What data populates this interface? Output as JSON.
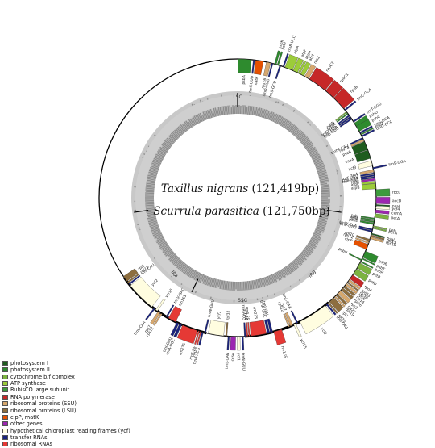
{
  "title": {
    "line1_species": "Taxillus nigrans",
    "line1_size": "(121,419bp)",
    "line2_species": "Scurrula parasitica",
    "line2_size": "(121,750bp)"
  },
  "regions": {
    "lsc": "LSC",
    "ssc": "SSC",
    "ira": "IRA",
    "irb": "IRB"
  },
  "legend": [
    {
      "label": "photosystem I",
      "color": "#1f5c1f"
    },
    {
      "label": "photosystem II",
      "color": "#2e8b2e"
    },
    {
      "label": "cytochrome b/f complex",
      "color": "#7cb341"
    },
    {
      "label": "ATP synthase",
      "color": "#9ccc3a"
    },
    {
      "label": "RubisCO large subunit",
      "color": "#3c9b3c"
    },
    {
      "label": "RNA polymerase",
      "color": "#c62828"
    },
    {
      "label": "ribosomal proteins (SSU)",
      "color": "#d7a86e"
    },
    {
      "label": "ribosomal proteins (LSU)",
      "color": "#8d6e3f"
    },
    {
      "label": "clpP, matK",
      "color": "#e65100"
    },
    {
      "label": "other genes",
      "color": "#9c27b0"
    },
    {
      "label": "hypothetical chloroplast reading frames (ycf)",
      "color": "#fffde0"
    },
    {
      "label": "transfer RNAs",
      "color": "#1a237e"
    },
    {
      "label": "ribosomal RNAs",
      "color": "#e53935"
    }
  ],
  "genes": [
    {
      "name": "psbA",
      "start": 0.2,
      "span": 5.5,
      "cat": "photosystem II",
      "side": "in"
    },
    {
      "name": "trnK-UUU",
      "start": 6.5,
      "span": 0.6,
      "cat": "transfer RNAs",
      "side": "in"
    },
    {
      "name": "matK",
      "start": 7.5,
      "span": 3.2,
      "cat": "clpP, matK",
      "side": "in"
    },
    {
      "name": "rps16",
      "start": 12.0,
      "span": 1.8,
      "cat": "ribosomal proteins (SSU)",
      "side": "in"
    },
    {
      "name": "trnQ-UUG",
      "start": 14.2,
      "span": 0.6,
      "cat": "transfer RNAs",
      "side": "in"
    },
    {
      "name": "psbK",
      "start": 15.4,
      "span": 0.8,
      "cat": "photosystem II",
      "side": "out"
    },
    {
      "name": "psbI",
      "start": 16.6,
      "span": 0.6,
      "cat": "photosystem II",
      "side": "out"
    },
    {
      "name": "trnS-GCU",
      "start": 17.6,
      "span": 0.6,
      "cat": "transfer RNAs",
      "side": "in"
    },
    {
      "name": "trnR-UCU",
      "start": 19.0,
      "span": 0.6,
      "cat": "transfer RNAs",
      "side": "out"
    },
    {
      "name": "atpA",
      "start": 20.0,
      "span": 3.3,
      "cat": "ATP synthase",
      "side": "out"
    },
    {
      "name": "atpF",
      "start": 23.6,
      "span": 2.0,
      "cat": "ATP synthase",
      "side": "out"
    },
    {
      "name": "atpH",
      "start": 25.9,
      "span": 0.8,
      "cat": "ATP synthase",
      "side": "out"
    },
    {
      "name": "atpI",
      "start": 27.0,
      "span": 1.6,
      "cat": "ATP synthase",
      "side": "out"
    },
    {
      "name": "rps2",
      "start": 29.0,
      "span": 1.8,
      "cat": "ribosomal proteins (SSU)",
      "side": "out"
    },
    {
      "name": "rpoC2",
      "start": 31.2,
      "span": 8.0,
      "cat": "RNA polymerase",
      "side": "out"
    },
    {
      "name": "rpoC1",
      "start": 39.5,
      "span": 4.3,
      "cat": "RNA polymerase",
      "side": "out"
    },
    {
      "name": "rpoB",
      "start": 44.0,
      "span": 6.0,
      "cat": "RNA polymerase",
      "side": "out"
    },
    {
      "name": "trnC-GCA",
      "start": 50.5,
      "span": 0.6,
      "cat": "transfer RNAs",
      "side": "out"
    },
    {
      "name": "petN",
      "start": 51.6,
      "span": 0.5,
      "cat": "cytochrome b/f complex",
      "side": "in"
    },
    {
      "name": "psbM",
      "start": 52.4,
      "span": 0.5,
      "cat": "photosystem II",
      "side": "in"
    },
    {
      "name": "trnD-GUC",
      "start": 53.4,
      "span": 0.6,
      "cat": "transfer RNAs",
      "side": "in"
    },
    {
      "name": "trnY-GUA",
      "start": 54.2,
      "span": 0.6,
      "cat": "transfer RNAs",
      "side": "in"
    },
    {
      "name": "trnE-UUC",
      "start": 55.0,
      "span": 0.6,
      "cat": "transfer RNAs",
      "side": "in"
    },
    {
      "name": "trnT-GGU",
      "start": 56.4,
      "span": 0.6,
      "cat": "transfer RNAs",
      "side": "out"
    },
    {
      "name": "psbD",
      "start": 57.4,
      "span": 2.1,
      "cat": "photosystem II",
      "side": "out"
    },
    {
      "name": "psbC",
      "start": 59.0,
      "span": 2.4,
      "cat": "photosystem II",
      "side": "out"
    },
    {
      "name": "trnS-UGA",
      "start": 61.8,
      "span": 0.6,
      "cat": "transfer RNAs",
      "side": "out"
    },
    {
      "name": "psbZ",
      "start": 62.6,
      "span": 0.5,
      "cat": "photosystem II",
      "side": "out"
    },
    {
      "name": "trnG-GCC",
      "start": 63.4,
      "span": 0.6,
      "cat": "transfer RNAs",
      "side": "out"
    },
    {
      "name": "trnfM-CAU",
      "start": 64.3,
      "span": 0.6,
      "cat": "transfer RNAs",
      "side": "in"
    },
    {
      "name": "rps14",
      "start": 65.1,
      "span": 0.8,
      "cat": "ribosomal proteins (SSU)",
      "side": "in"
    },
    {
      "name": "psaB",
      "start": 66.1,
      "span": 3.6,
      "cat": "photosystem I",
      "side": "in"
    },
    {
      "name": "psaA",
      "start": 69.9,
      "span": 3.6,
      "cat": "photosystem I",
      "side": "in"
    },
    {
      "name": "ycf3",
      "start": 74.5,
      "span": 2.2,
      "cat": "hypothetical chloroplast reading frames (ycf)",
      "side": "in"
    },
    {
      "name": "trnS-GGA",
      "start": 77.4,
      "span": 0.6,
      "cat": "transfer RNAs",
      "side": "out"
    },
    {
      "name": "rps4",
      "start": 78.3,
      "span": 1.0,
      "cat": "ribosomal proteins (SSU)",
      "side": "in"
    },
    {
      "name": "trnT-UGU",
      "start": 79.6,
      "span": 0.6,
      "cat": "transfer RNAs",
      "side": "in"
    },
    {
      "name": "trnL-UAA",
      "start": 80.4,
      "span": 0.6,
      "cat": "transfer RNAs",
      "side": "in"
    },
    {
      "name": "trnF-GAA",
      "start": 81.2,
      "span": 0.6,
      "cat": "transfer RNAs",
      "side": "in"
    },
    {
      "name": "ndhJ",
      "start": 82.0,
      "span": 0.8,
      "cat": "other genes",
      "side": "in"
    },
    {
      "name": "atpE",
      "start": 83.1,
      "span": 0.9,
      "cat": "ATP synthase",
      "side": "in"
    },
    {
      "name": "atpB",
      "start": 84.1,
      "span": 2.2,
      "cat": "ATP synthase",
      "side": "in"
    },
    {
      "name": "rbcL",
      "start": 86.6,
      "span": 2.8,
      "cat": "RubisCO large subunit",
      "side": "out"
    },
    {
      "name": "accD",
      "start": 89.8,
      "span": 2.6,
      "cat": "other genes",
      "side": "out"
    },
    {
      "name": "psaI",
      "start": 92.8,
      "span": 0.5,
      "cat": "photosystem I",
      "side": "out"
    },
    {
      "name": "ycf4",
      "start": 93.6,
      "span": 0.9,
      "cat": "hypothetical chloroplast reading frames (ycf)",
      "side": "out"
    },
    {
      "name": "cemA",
      "start": 95.0,
      "span": 1.2,
      "cat": "other genes",
      "side": "out"
    },
    {
      "name": "petA",
      "start": 96.6,
      "span": 1.5,
      "cat": "cytochrome b/f complex",
      "side": "out"
    },
    {
      "name": "psbJ",
      "start": 98.4,
      "span": 0.5,
      "cat": "photosystem II",
      "side": "in"
    },
    {
      "name": "psbL",
      "start": 99.1,
      "span": 0.5,
      "cat": "photosystem II",
      "side": "in"
    },
    {
      "name": "psbF",
      "start": 99.8,
      "span": 0.5,
      "cat": "photosystem II",
      "side": "in"
    },
    {
      "name": "psbE",
      "start": 100.5,
      "span": 0.7,
      "cat": "photosystem II",
      "side": "in"
    },
    {
      "name": "petL",
      "start": 101.6,
      "span": 0.5,
      "cat": "cytochrome b/f complex",
      "side": "out"
    },
    {
      "name": "petG",
      "start": 102.3,
      "span": 0.5,
      "cat": "cytochrome b/f complex",
      "side": "out"
    },
    {
      "name": "trnW-CCA",
      "start": 103.0,
      "span": 0.6,
      "cat": "transfer RNAs",
      "side": "in"
    },
    {
      "name": "trnP-UGG",
      "start": 103.8,
      "span": 0.6,
      "cat": "transfer RNAs",
      "side": "in"
    },
    {
      "name": "psaJ",
      "start": 104.8,
      "span": 0.5,
      "cat": "photosystem I",
      "side": "out"
    },
    {
      "name": "rpl33",
      "start": 105.5,
      "span": 0.6,
      "cat": "ribosomal proteins (LSU)",
      "side": "out"
    },
    {
      "name": "rps18",
      "start": 106.3,
      "span": 0.8,
      "cat": "ribosomal proteins (SSU)",
      "side": "out"
    },
    {
      "name": "rpl20",
      "start": 107.4,
      "span": 0.8,
      "cat": "ribosomal proteins (LSU)",
      "side": "in"
    },
    {
      "name": "rps12",
      "start": 108.6,
      "span": 0.6,
      "cat": "ribosomal proteins (SSU)",
      "side": "in"
    },
    {
      "name": "clpP",
      "start": 109.6,
      "span": 2.2,
      "cat": "clpP, matK",
      "side": "in"
    },
    {
      "name": "psbB",
      "start": 112.6,
      "span": 2.8,
      "cat": "photosystem II",
      "side": "out"
    },
    {
      "name": "psbT",
      "start": 115.7,
      "span": 0.5,
      "cat": "photosystem II",
      "side": "out"
    },
    {
      "name": "psbN",
      "start": 116.4,
      "span": 0.5,
      "cat": "photosystem II",
      "side": "in"
    },
    {
      "name": "psbH",
      "start": 117.1,
      "span": 0.5,
      "cat": "photosystem II",
      "side": "out"
    },
    {
      "name": "petB",
      "start": 118.0,
      "span": 2.4,
      "cat": "cytochrome b/f complex",
      "side": "out"
    },
    {
      "name": "petD",
      "start": 120.8,
      "span": 2.4,
      "cat": "cytochrome b/f complex",
      "side": "out"
    },
    {
      "name": "rpoA",
      "start": 123.8,
      "span": 2.0,
      "cat": "RNA polymerase",
      "side": "out"
    },
    {
      "name": "rps11",
      "start": 126.1,
      "span": 0.9,
      "cat": "ribosomal proteins (SSU)",
      "side": "out"
    },
    {
      "name": "rpl36",
      "start": 127.3,
      "span": 0.5,
      "cat": "ribosomal proteins (LSU)",
      "side": "out"
    },
    {
      "name": "rps8",
      "start": 128.1,
      "span": 0.9,
      "cat": "ribosomal proteins (SSU)",
      "side": "out"
    },
    {
      "name": "rpl14",
      "start": 129.3,
      "span": 0.9,
      "cat": "ribosomal proteins (LSU)",
      "side": "out"
    },
    {
      "name": "rpl16",
      "start": 130.5,
      "span": 1.2,
      "cat": "ribosomal proteins (LSU)",
      "side": "out"
    },
    {
      "name": "rps3",
      "start": 132.0,
      "span": 1.6,
      "cat": "ribosomal proteins (SSU)",
      "side": "out"
    },
    {
      "name": "rpl22",
      "start": 133.9,
      "span": 0.9,
      "cat": "ribosomal proteins (LSU)",
      "side": "out"
    },
    {
      "name": "rps19",
      "start": 135.1,
      "span": 0.6,
      "cat": "ribosomal proteins (SSU)",
      "side": "out"
    },
    {
      "name": "rpl2",
      "start": 136.0,
      "span": 2.5,
      "cat": "ribosomal proteins (LSU)",
      "side": "out"
    },
    {
      "name": "rpl23",
      "start": 138.8,
      "span": 0.6,
      "cat": "ribosomal proteins (LSU)",
      "side": "out"
    },
    {
      "name": "trnI-CAU",
      "start": 139.7,
      "span": 0.6,
      "cat": "transfer RNAs",
      "side": "out"
    },
    {
      "name": "ycf2",
      "start": 140.8,
      "span": 12.5,
      "cat": "hypothetical chloroplast reading frames (ycf)",
      "side": "out"
    },
    {
      "name": "trnL-CAA",
      "start": 154.2,
      "span": 0.6,
      "cat": "transfer RNAs",
      "side": "in"
    },
    {
      "name": "ycf15",
      "start": 155.2,
      "span": 0.9,
      "cat": "hypothetical chloroplast reading frames (ycf)",
      "side": "out"
    },
    {
      "name": "rps7",
      "start": 156.5,
      "span": 1.1,
      "cat": "ribosomal proteins (SSU)",
      "side": "in"
    },
    {
      "name": "rps12",
      "start": 157.9,
      "span": 0.6,
      "cat": "ribosomal proteins (SSU)",
      "side": "in"
    },
    {
      "name": "rrn16S",
      "start": 161.5,
      "span": 3.4,
      "cat": "ribosomal RNAs",
      "side": "out"
    },
    {
      "name": "trnI-GAU",
      "start": 165.3,
      "span": 1.0,
      "cat": "transfer RNAs",
      "side": "in"
    },
    {
      "name": "trnA-UGC",
      "start": 166.6,
      "span": 1.0,
      "cat": "transfer RNAs",
      "side": "in"
    },
    {
      "name": "rrn23S",
      "start": 168.0,
      "span": 6.5,
      "cat": "ribosomal RNAs",
      "side": "in"
    },
    {
      "name": "rrn4.5S",
      "start": 174.9,
      "span": 0.5,
      "cat": "ribosomal RNAs",
      "side": "in"
    },
    {
      "name": "rrn5S",
      "start": 175.7,
      "span": 0.5,
      "cat": "ribosomal RNAs",
      "side": "in"
    },
    {
      "name": "trnR-ACG",
      "start": 176.6,
      "span": 0.6,
      "cat": "transfer RNAs",
      "side": "in"
    },
    {
      "name": "trnN-GUU",
      "start": 177.6,
      "span": 0.6,
      "cat": "transfer RNAs",
      "side": "out"
    },
    {
      "name": "ycf1",
      "start": 179.0,
      "span": 1.2,
      "cat": "hypothetical chloroplast reading frames (ycf)",
      "side": "out"
    },
    {
      "name": "ccsA",
      "start": 180.8,
      "span": 2.0,
      "cat": "other genes",
      "side": "out"
    },
    {
      "name": "trnL-UAG",
      "start": 183.4,
      "span": 0.6,
      "cat": "transfer RNAs",
      "side": "out"
    },
    {
      "name": "rpl32",
      "start": 184.4,
      "span": 0.6,
      "cat": "ribosomal proteins (LSU)",
      "side": "in"
    },
    {
      "name": "ycf1",
      "start": 185.8,
      "span": 6.5,
      "cat": "hypothetical chloroplast reading frames (ycf)",
      "side": "in"
    },
    {
      "name": "trnN-GUU",
      "start": 193.3,
      "span": 0.6,
      "cat": "transfer RNAs",
      "side": "in"
    },
    {
      "name": "trnR-ACG",
      "start": 194.3,
      "span": 0.6,
      "cat": "transfer RNAs",
      "side": "out"
    },
    {
      "name": "rrn5S",
      "start": 195.2,
      "span": 0.5,
      "cat": "ribosomal RNAs",
      "side": "out"
    },
    {
      "name": "rrn4.5S",
      "start": 196.0,
      "span": 0.5,
      "cat": "ribosomal RNAs",
      "side": "out"
    },
    {
      "name": "rrn23S",
      "start": 196.9,
      "span": 6.5,
      "cat": "ribosomal RNAs",
      "side": "out"
    },
    {
      "name": "trnA-UGC",
      "start": 203.8,
      "span": 1.0,
      "cat": "transfer RNAs",
      "side": "out"
    },
    {
      "name": "trnI-GAU",
      "start": 205.1,
      "span": 1.0,
      "cat": "transfer RNAs",
      "side": "out"
    },
    {
      "name": "rrn16S",
      "start": 206.6,
      "span": 3.4,
      "cat": "ribosomal RNAs",
      "side": "in"
    },
    {
      "name": "trnV-GAC",
      "start": 210.6,
      "span": 0.6,
      "cat": "transfer RNAs",
      "side": "in"
    },
    {
      "name": "rps12",
      "start": 213.0,
      "span": 0.6,
      "cat": "ribosomal proteins (SSU)",
      "side": "out"
    },
    {
      "name": "rps7",
      "start": 213.9,
      "span": 1.1,
      "cat": "ribosomal proteins (SSU)",
      "side": "out"
    },
    {
      "name": "ycf15",
      "start": 215.4,
      "span": 0.9,
      "cat": "hypothetical chloroplast reading frames (ycf)",
      "side": "in"
    },
    {
      "name": "trnL-CAA",
      "start": 216.7,
      "span": 0.6,
      "cat": "transfer RNAs",
      "side": "out"
    },
    {
      "name": "ycf2",
      "start": 218.2,
      "span": 12.5,
      "cat": "hypothetical chloroplast reading frames (ycf)",
      "side": "in"
    },
    {
      "name": "trnI-CAU",
      "start": 231.2,
      "span": 0.6,
      "cat": "transfer RNAs",
      "side": "in"
    },
    {
      "name": "rpl23",
      "start": 232.1,
      "span": 0.6,
      "cat": "ribosomal proteins (LSU)",
      "side": "in"
    },
    {
      "name": "rpl2",
      "start": 233.0,
      "span": 2.5,
      "cat": "ribosomal proteins (LSU)",
      "side": "in"
    }
  ],
  "gene_text": [
    "psbA",
    "trnK-UUU",
    "matK",
    "rps16",
    "trnQ-UUG",
    "psbK",
    "psbI",
    "trnS-GCU",
    "trnR-UCU",
    "atpA",
    "atpF",
    "atpH",
    "atpI",
    "rps2",
    "rpoC2",
    "rpoC1",
    "rpoB",
    "trnC-GCA",
    "petN",
    "psbM",
    "trnD-GUC",
    "trnY-GUA",
    "trnE-UUC",
    "trnT-GGU",
    "psbD",
    "psbC",
    "trnS-UGA",
    "psbZ",
    "trnG-GCC",
    "trnfM-CAU",
    "rps14",
    "psaB",
    "psaA",
    "ycf3",
    "trnS-GGA",
    "rps4",
    "trnT-UGU",
    "trnL-UAA",
    "trnF-GAA",
    "ndhJ",
    "atpE",
    "atpB",
    "rbcL",
    "accD",
    "psaI",
    "ycf4",
    "cemA",
    "petA",
    "psbJ",
    "psbL",
    "psbF",
    "psbE",
    "petL",
    "petG",
    "trnW-CCA",
    "trnP-UGG",
    "psaJ",
    "rpl33",
    "rps18",
    "rpl20",
    "rps12",
    "clpP",
    "psbB",
    "psbT",
    "psbN",
    "psbH",
    "petB",
    "petD",
    "rpoA",
    "rps11",
    "rpl36",
    "rps8",
    "rpl14",
    "rpl16",
    "rps3",
    "rpl22",
    "rps19",
    "rpl2",
    "rpl23",
    "trnI-CAU",
    "ycf2",
    "trnL-CAA",
    "ycf15",
    "rps7",
    "rps12",
    "rrn16S",
    "trnI-GAU",
    "trnA-UGC",
    "rrn23S",
    "rrn4.5S",
    "rrn5S",
    "trnR-ACG",
    "trnN-GUU",
    "ycf1",
    "ccsA",
    "trnL-UAG",
    "rpl32",
    "ycf1",
    "trnN-GUU",
    "trnR-ACG",
    "rrn5S",
    "rrn4.5S",
    "rrn23S",
    "trnA-UGC",
    "trnI-GAU",
    "rrn16S",
    "trnV-GAC",
    "rps12",
    "rps7",
    "ycf15",
    "trnL-CAA",
    "ycf2",
    "trnI-CAU",
    "rpl23",
    "rpl2"
  ]
}
